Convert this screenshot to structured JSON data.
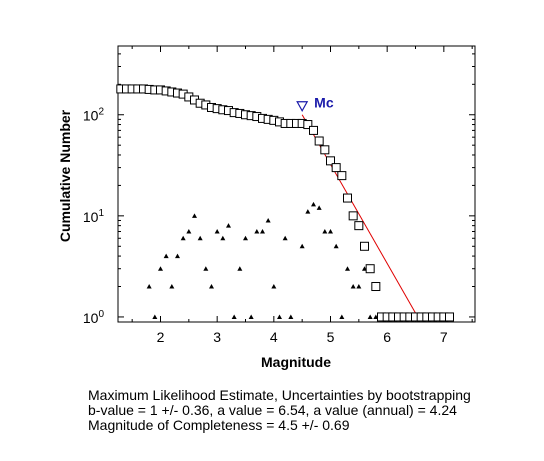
{
  "chart_data": {
    "type": "scatter",
    "xlabel": "Magnitude",
    "ylabel": "Cumulative Number",
    "xlim": [
      1.25,
      7.55
    ],
    "ylim_log10": [
      -0.05,
      2.68
    ],
    "y_scale": "log",
    "grid": false,
    "x_ticks": [
      2,
      3,
      4,
      5,
      6,
      7
    ],
    "y_ticks": [
      {
        "value": 1,
        "base": "10",
        "exp": "0"
      },
      {
        "value": 10,
        "base": "10",
        "exp": "1"
      },
      {
        "value": 100,
        "base": "10",
        "exp": "2"
      }
    ],
    "colors": {
      "cumulative": "#000000",
      "noncumulative": "#000000",
      "fit": "#e00000",
      "mc": "#1a1aaa"
    },
    "series": [
      {
        "marker": "square",
        "x": [
          1.3,
          1.4,
          1.5,
          1.6,
          1.7,
          1.8,
          1.9,
          2.0,
          2.1,
          2.2,
          2.3,
          2.4,
          2.5,
          2.6,
          2.7,
          2.8,
          2.9,
          3.0,
          3.1,
          3.2,
          3.3,
          3.4,
          3.5,
          3.6,
          3.7,
          3.8,
          3.9,
          4.0,
          4.1,
          4.2,
          4.3,
          4.4,
          4.5,
          4.6,
          4.7,
          4.8,
          4.9,
          5.0,
          5.1,
          5.2,
          5.3,
          5.4,
          5.5,
          5.6,
          5.7,
          5.8,
          5.9,
          6.0,
          6.1,
          6.2,
          6.3,
          6.4,
          6.5,
          6.6,
          6.7,
          6.8,
          6.9,
          7.0,
          7.1
        ],
        "y": [
          180,
          180,
          180,
          180,
          180,
          178,
          176,
          176,
          172,
          168,
          164,
          160,
          150,
          140,
          130,
          125,
          118,
          115,
          112,
          110,
          105,
          103,
          100,
          98,
          96,
          92,
          90,
          88,
          85,
          82,
          82,
          82,
          82,
          80,
          70,
          55,
          45,
          35,
          30,
          25,
          15,
          10,
          8,
          5,
          3,
          2,
          1,
          1,
          1,
          1,
          1,
          1,
          1,
          1,
          1,
          1,
          1,
          1,
          1
        ]
      },
      {
        "marker": "triangle",
        "x": [
          1.8,
          1.9,
          2.0,
          2.1,
          2.2,
          2.3,
          2.4,
          2.5,
          2.6,
          2.7,
          2.8,
          2.9,
          3.0,
          3.1,
          3.2,
          3.3,
          3.4,
          3.5,
          3.6,
          3.7,
          3.8,
          3.9,
          4.0,
          4.1,
          4.2,
          4.3,
          4.5,
          4.6,
          4.7,
          4.8,
          4.9,
          5.0,
          5.1,
          5.2,
          5.3,
          5.4,
          5.5,
          5.6,
          5.7,
          5.8,
          5.9
        ],
        "y": [
          2,
          1,
          3,
          4,
          2,
          4,
          6,
          7,
          10,
          6,
          3,
          2,
          7,
          6,
          8,
          1,
          3,
          6,
          1,
          7,
          7,
          9,
          2,
          1,
          6,
          1,
          5,
          11,
          13,
          12,
          7,
          7,
          5,
          1,
          3,
          2,
          2,
          3,
          1,
          1,
          1
        ]
      },
      {
        "marker": "line",
        "x": [
          4.5,
          6.54
        ],
        "y": [
          100,
          1
        ]
      }
    ],
    "mc": {
      "x": 4.5,
      "y": 120,
      "label": "Mc"
    }
  },
  "caption": {
    "line1": "Maximum Likelihood Estimate, Uncertainties by bootstrapping",
    "line2": "b-value = 1 +/- 0.36,  a value = 6.54,  a value (annual) = 4.24",
    "line3": "Magnitude of Completeness = 4.5 +/- 0.69"
  }
}
